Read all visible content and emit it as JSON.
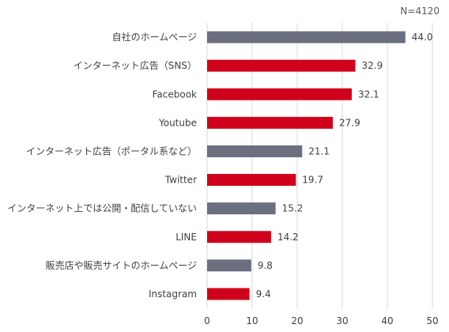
{
  "note": "N=4120",
  "chart_data": {
    "type": "bar",
    "orientation": "horizontal",
    "categories": [
      "自社のホームページ",
      "インターネット広告（SNS）",
      "Facebook",
      "Youtube",
      "インターネット広告（ポータル系など）",
      "Twitter",
      "インターネット上では公開・配信していない",
      "LINE",
      "販売店や販売サイトのホームページ",
      "Instagram"
    ],
    "values": [
      44.0,
      32.9,
      32.1,
      27.9,
      21.1,
      19.7,
      15.2,
      14.2,
      9.8,
      9.4
    ],
    "value_labels": [
      "44.0",
      "32.9",
      "32.1",
      "27.9",
      "21.1",
      "19.7",
      "15.2",
      "14.2",
      "9.8",
      "9.4"
    ],
    "bar_colors": [
      "#6b6f80",
      "#d0021b",
      "#d0021b",
      "#d0021b",
      "#6b6f80",
      "#d0021b",
      "#6b6f80",
      "#d0021b",
      "#6b6f80",
      "#d0021b"
    ],
    "xlim": [
      0,
      50
    ],
    "xticks": [
      "0",
      "10",
      "20",
      "30",
      "40",
      "50"
    ],
    "grid": true,
    "title": "",
    "xlabel": "",
    "ylabel": ""
  }
}
